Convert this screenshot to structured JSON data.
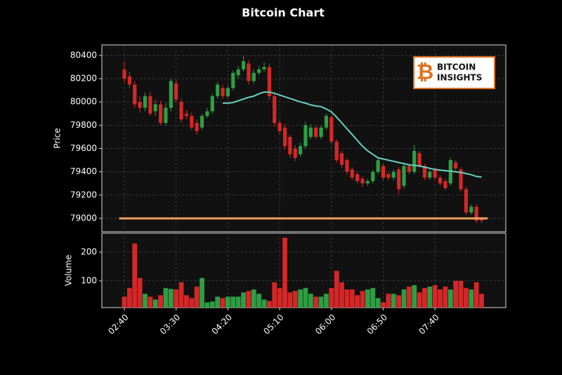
{
  "chart_data": {
    "type": "candlestick",
    "title": "Bitcoin Chart",
    "logo": [
      "BITCOIN",
      "INSIGHTS"
    ],
    "ylabel": "Price",
    "volume_ylabel": "Volume",
    "categories": [
      "02:40",
      null,
      null,
      null,
      null,
      null,
      null,
      null,
      null,
      null,
      "03:30",
      null,
      null,
      null,
      null,
      null,
      null,
      null,
      null,
      null,
      "04:20",
      null,
      null,
      null,
      null,
      null,
      null,
      null,
      null,
      null,
      "05:10",
      null,
      null,
      null,
      null,
      null,
      null,
      null,
      null,
      null,
      "06:00",
      null,
      null,
      null,
      null,
      null,
      null,
      null,
      null,
      null,
      "06:50",
      null,
      null,
      null,
      null,
      null,
      null,
      null,
      null,
      null,
      "07:40",
      null,
      null,
      null,
      null,
      null,
      null,
      null,
      null,
      null
    ],
    "open": [
      80280,
      80220,
      80150,
      80000,
      79950,
      80050,
      79920,
      79980,
      79820,
      79950,
      80160,
      80000,
      79900,
      79880,
      79820,
      79780,
      79880,
      79920,
      80050,
      80120,
      80050,
      80120,
      80230,
      80280,
      80330,
      80180,
      80250,
      80280,
      80300,
      80050,
      79820,
      79780,
      79700,
      79600,
      79550,
      79620,
      79700,
      79780,
      79700,
      79780,
      79870,
      79660,
      79560,
      79500,
      79420,
      79380,
      79340,
      79300,
      79320,
      79400,
      79450,
      79380,
      79350,
      79420,
      79280,
      79450,
      79400,
      79560,
      79450,
      79350,
      79420,
      79350,
      79320,
      79300,
      79480,
      79420,
      79250,
      79050,
      79100,
      79000
    ],
    "high": [
      80350,
      80260,
      80180,
      80050,
      80080,
      80090,
      80020,
      80010,
      79990,
      80200,
      80190,
      80030,
      79930,
      79910,
      79850,
      79900,
      79950,
      80070,
      80170,
      80150,
      80140,
      80270,
      80310,
      80400,
      80360,
      80280,
      80310,
      80340,
      80330,
      80070,
      79850,
      79810,
      79720,
      79630,
      79650,
      79830,
      79810,
      79800,
      79800,
      79900,
      79890,
      79680,
      79580,
      79520,
      79440,
      79400,
      79360,
      79340,
      79420,
      79520,
      79470,
      79400,
      79420,
      79440,
      79470,
      79470,
      79630,
      79580,
      79470,
      79420,
      79440,
      79370,
      79340,
      79520,
      79500,
      79440,
      79270,
      79120,
      79120,
      79010
    ],
    "low": [
      80170,
      80120,
      79950,
      79910,
      79920,
      79880,
      79880,
      79800,
      79800,
      79920,
      79990,
      79820,
      79850,
      79760,
      79720,
      79760,
      79860,
      79900,
      80030,
      80030,
      80030,
      80100,
      80200,
      80260,
      80150,
      80160,
      80230,
      80260,
      80020,
      79790,
      79720,
      79590,
      79520,
      79490,
      79530,
      79600,
      79680,
      79680,
      79680,
      79760,
      79640,
      79480,
      79430,
      79370,
      79330,
      79300,
      79270,
      79280,
      79300,
      79380,
      79330,
      79330,
      79330,
      79210,
      79260,
      79380,
      79380,
      79430,
      79330,
      79330,
      79330,
      79280,
      79240,
      79280,
      79410,
      79230,
      79030,
      79030,
      78960,
      78960
    ],
    "close": [
      80200,
      80150,
      79980,
      79950,
      80050,
      79900,
      79980,
      79820,
      79950,
      80180,
      80020,
      79850,
      79880,
      79780,
      79750,
      79880,
      79920,
      80050,
      80150,
      80050,
      80120,
      80250,
      80280,
      80350,
      80180,
      80250,
      80280,
      80300,
      80050,
      79820,
      79750,
      79620,
      79550,
      79520,
      79620,
      79800,
      79780,
      79700,
      79780,
      79880,
      79660,
      79500,
      79460,
      79400,
      79350,
      79320,
      79300,
      79320,
      79400,
      79500,
      79350,
      79350,
      79400,
      79250,
      79450,
      79400,
      79580,
      79450,
      79350,
      79400,
      79350,
      79300,
      79260,
      79500,
      79430,
      79250,
      79050,
      79100,
      78980,
      78980
    ],
    "volume": [
      45,
      75,
      230,
      110,
      55,
      45,
      35,
      50,
      75,
      72,
      70,
      95,
      50,
      40,
      80,
      110,
      25,
      28,
      45,
      40,
      45,
      45,
      45,
      60,
      65,
      70,
      55,
      35,
      30,
      95,
      75,
      250,
      60,
      65,
      70,
      75,
      55,
      45,
      45,
      55,
      75,
      135,
      95,
      70,
      70,
      50,
      65,
      70,
      75,
      40,
      25,
      55,
      55,
      50,
      70,
      80,
      85,
      60,
      75,
      80,
      85,
      70,
      80,
      70,
      100,
      100,
      75,
      70,
      95,
      55
    ],
    "up_color": "#2e9e44",
    "down_color": "#d62728",
    "moving_average": {
      "color": "#6ad0c0",
      "values": [
        null,
        null,
        null,
        null,
        null,
        null,
        null,
        null,
        null,
        null,
        null,
        null,
        null,
        null,
        null,
        null,
        null,
        null,
        null,
        79990,
        79990,
        79995,
        80010,
        80025,
        80040,
        80050,
        80070,
        80085,
        80085,
        80075,
        80060,
        80045,
        80030,
        80015,
        80000,
        79990,
        79975,
        79965,
        79960,
        79940,
        79915,
        79870,
        79820,
        79770,
        79720,
        79670,
        79620,
        79580,
        79550,
        79520,
        79510,
        79500,
        79490,
        79480,
        79470,
        79460,
        79455,
        79450,
        79440,
        79430,
        79420,
        79415,
        79410,
        79405,
        79400,
        79395,
        79385,
        79375,
        79360,
        79355
      ]
    },
    "support_line": {
      "value": 79000,
      "color": "#f0a060"
    },
    "ylim": [
      78885,
      80490
    ],
    "yticks": [
      79000,
      79200,
      79400,
      79600,
      79800,
      80000,
      80200,
      80400
    ],
    "volume_ylim": [
      7,
      266
    ],
    "volume_yticks": [
      100,
      200
    ],
    "grid": true
  }
}
